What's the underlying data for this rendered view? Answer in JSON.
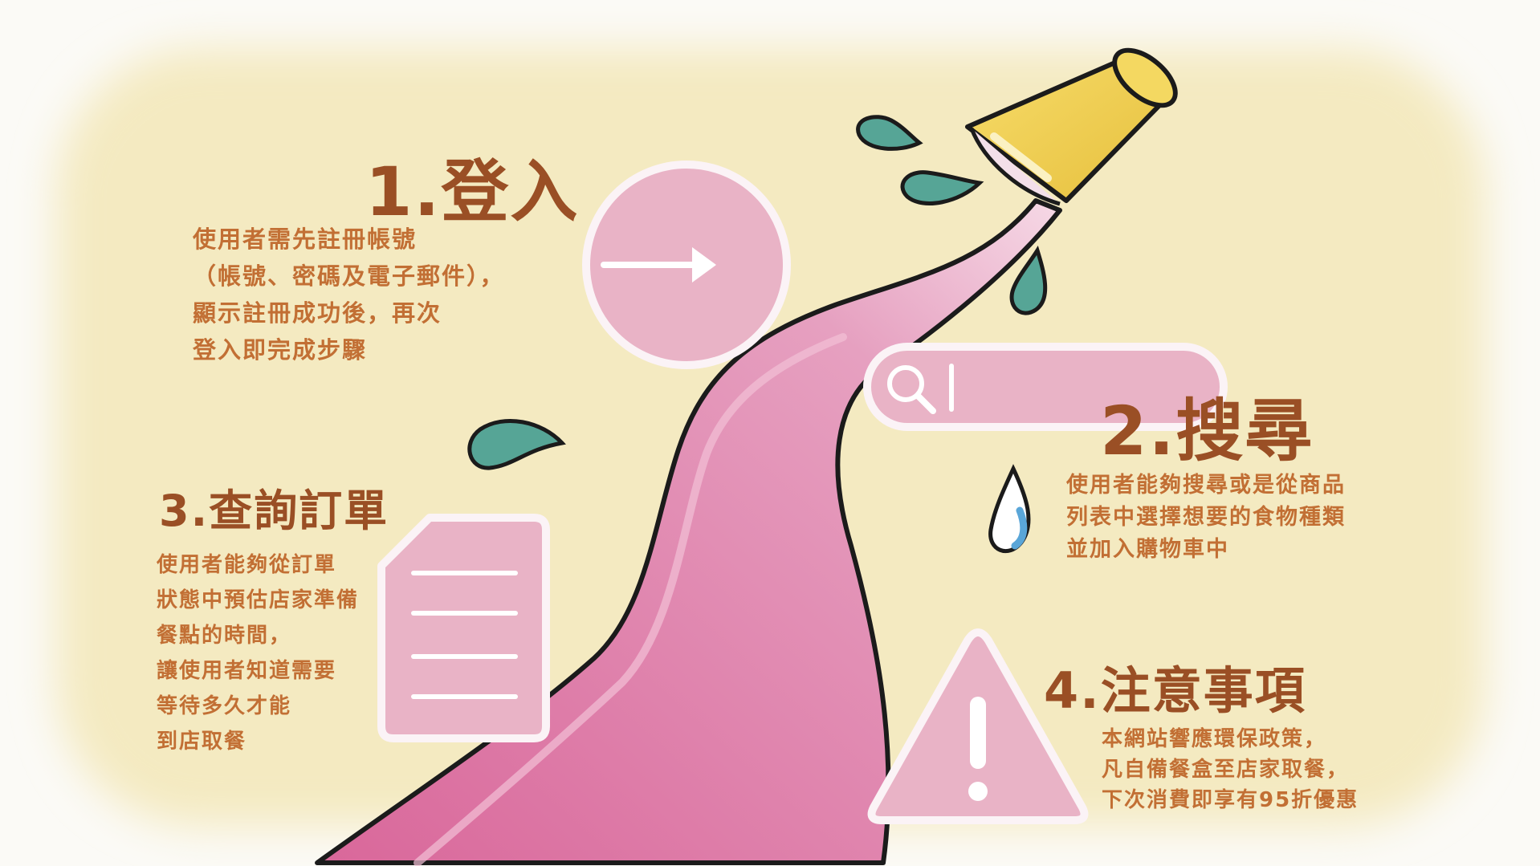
{
  "steps": [
    {
      "title": "1.登入",
      "icon": "arrow-right-icon",
      "lines": [
        "使用者需先註冊帳號",
        "（帳號、密碼及電子郵件），",
        "顯示註冊成功後，再次",
        "登入即完成步驟"
      ]
    },
    {
      "title": "2.搜尋",
      "icon": "search-icon",
      "lines": [
        "使用者能夠搜尋或是從商品",
        "列表中選擇想要的食物種類",
        "並加入購物車中"
      ]
    },
    {
      "title": "3.查詢訂單",
      "icon": "document-icon",
      "lines": [
        "使用者能夠從訂單",
        "狀態中預估店家準備",
        "餐點的時間，",
        "讓使用者知道需要",
        "等待多久才能",
        "到店取餐"
      ]
    },
    {
      "title": "4.注意事項",
      "icon": "warning-icon",
      "lines": [
        "本網站響應環保政策，",
        "凡自備餐盒至店家取餐，",
        "下次消費即享有95折優惠"
      ]
    }
  ],
  "colors": {
    "background": "#f5ecc4",
    "stream_pink": "#dc6f9f",
    "icon_pink": "#e4afc2",
    "cup_yellow": "#f0cf50",
    "drop_teal": "#56a596",
    "title_brown": "#9a4f25",
    "text_orange": "#c26f34"
  }
}
